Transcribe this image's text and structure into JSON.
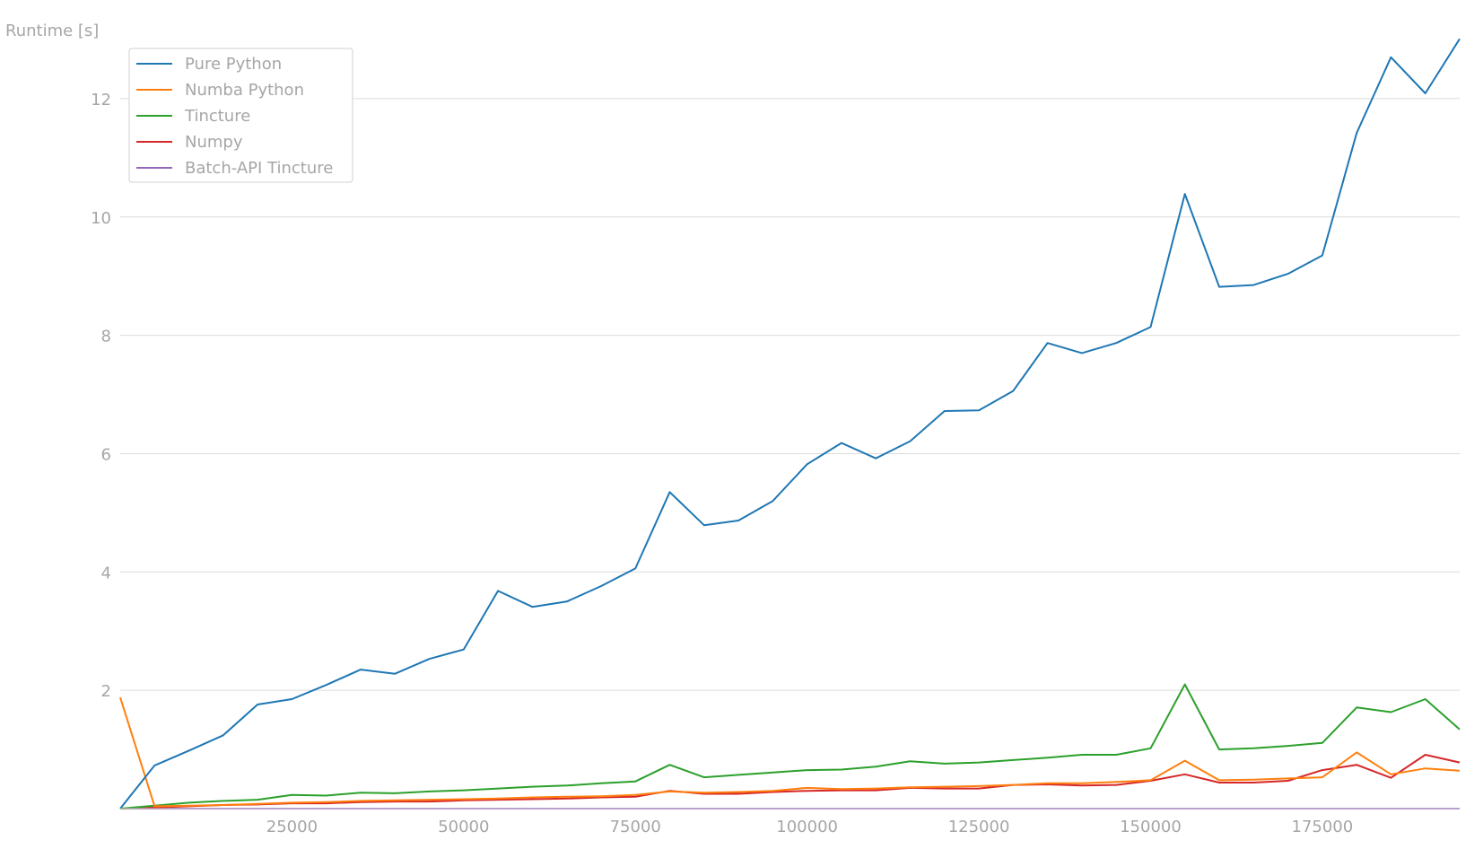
{
  "chart_data": {
    "type": "line",
    "title": "",
    "xlabel": "",
    "ylabel": "Runtime [s]",
    "xlim": [
      0,
      195000
    ],
    "ylim": [
      0,
      13
    ],
    "x_ticks": [
      25000,
      50000,
      75000,
      100000,
      125000,
      150000,
      175000
    ],
    "y_ticks": [
      2,
      4,
      6,
      8,
      10,
      12
    ],
    "grid": "horizontal",
    "legend_position": "top-left",
    "x": [
      0,
      5000,
      10000,
      15000,
      20000,
      25000,
      30000,
      35000,
      40000,
      45000,
      50000,
      55000,
      60000,
      65000,
      70000,
      75000,
      80000,
      85000,
      90000,
      95000,
      100000,
      105000,
      110000,
      115000,
      120000,
      125000,
      130000,
      135000,
      140000,
      145000,
      150000,
      155000,
      160000,
      165000,
      170000,
      175000,
      180000,
      185000,
      190000,
      195000
    ],
    "series": [
      {
        "name": "Pure Python",
        "color": "#1f77b4",
        "values": [
          0.0,
          0.73,
          0.98,
          1.24,
          1.76,
          1.85,
          2.09,
          2.35,
          2.28,
          2.53,
          2.69,
          3.68,
          3.41,
          3.5,
          3.76,
          4.06,
          5.35,
          4.79,
          4.87,
          5.2,
          5.82,
          6.18,
          5.92,
          6.21,
          6.72,
          6.73,
          7.06,
          7.87,
          7.7,
          7.87,
          8.14,
          10.39,
          8.82,
          8.85,
          9.04,
          9.35,
          11.42,
          12.7,
          12.09,
          13.01
        ]
      },
      {
        "name": "Numba Python",
        "color": "#ff7f0e",
        "values": [
          1.88,
          0.04,
          0.05,
          0.06,
          0.08,
          0.1,
          0.11,
          0.13,
          0.14,
          0.15,
          0.16,
          0.17,
          0.19,
          0.2,
          0.21,
          0.23,
          0.29,
          0.27,
          0.28,
          0.3,
          0.35,
          0.33,
          0.34,
          0.36,
          0.37,
          0.38,
          0.4,
          0.43,
          0.43,
          0.45,
          0.48,
          0.81,
          0.48,
          0.49,
          0.51,
          0.53,
          0.95,
          0.58,
          0.68,
          0.64
        ]
      },
      {
        "name": "Tincture",
        "color": "#2ca02c",
        "values": [
          0.0,
          0.05,
          0.1,
          0.13,
          0.15,
          0.23,
          0.22,
          0.27,
          0.26,
          0.29,
          0.31,
          0.34,
          0.37,
          0.39,
          0.43,
          0.46,
          0.74,
          0.53,
          0.57,
          0.61,
          0.65,
          0.66,
          0.71,
          0.8,
          0.76,
          0.78,
          0.82,
          0.86,
          0.91,
          0.91,
          1.02,
          2.1,
          1.0,
          1.02,
          1.06,
          1.11,
          1.71,
          1.63,
          1.85,
          1.34
        ]
      },
      {
        "name": "Numpy",
        "color": "#d62728",
        "values": [
          0.0,
          0.02,
          0.04,
          0.06,
          0.07,
          0.09,
          0.09,
          0.11,
          0.12,
          0.12,
          0.14,
          0.15,
          0.16,
          0.17,
          0.19,
          0.2,
          0.3,
          0.25,
          0.25,
          0.28,
          0.3,
          0.31,
          0.31,
          0.35,
          0.34,
          0.34,
          0.4,
          0.41,
          0.39,
          0.4,
          0.47,
          0.58,
          0.44,
          0.44,
          0.47,
          0.65,
          0.74,
          0.52,
          0.91,
          0.78
        ]
      },
      {
        "name": "Batch-API Tincture",
        "color": "#9467bd",
        "values": [
          0.0,
          0.0,
          0.0,
          0.0,
          0.0,
          0.0,
          0.0,
          0.0,
          0.0,
          0.0,
          0.0,
          0.0,
          0.0,
          0.0,
          0.0,
          0.0,
          0.0,
          0.0,
          0.0,
          0.0,
          0.0,
          0.0,
          0.0,
          0.0,
          0.0,
          0.0,
          0.0,
          0.0,
          0.0,
          0.0,
          0.0,
          0.0,
          0.0,
          0.0,
          0.0,
          0.0,
          0.0,
          0.0,
          0.0,
          0.0
        ]
      }
    ]
  }
}
